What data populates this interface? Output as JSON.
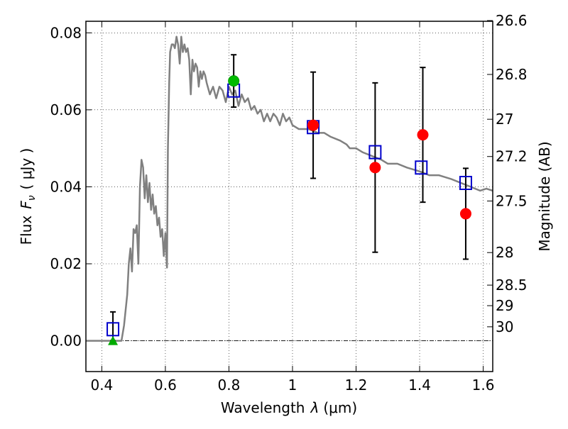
{
  "chart_data": {
    "type": "scatter",
    "xlabel_text": "Wavelength",
    "xlabel_symbol": "λ",
    "xlabel_unit": "(μm)",
    "ylabel_text": "Flux",
    "ylabel_symbol": "F",
    "ylabel_symbol_sub": "ν",
    "ylabel_unit": "( μJy )",
    "y2label": "Magnitude (AB)",
    "xlim": [
      0.35,
      1.63
    ],
    "ylim": [
      -0.008,
      0.083
    ],
    "x_ticks": [
      0.4,
      0.6,
      0.8,
      1.0,
      1.2,
      1.4,
      1.6
    ],
    "x_tick_labels": [
      "0.4",
      "0.6",
      "0.8",
      "1",
      "1.2",
      "1.4",
      "1.6"
    ],
    "y_ticks": [
      0.0,
      0.02,
      0.04,
      0.06,
      0.08
    ],
    "y_tick_labels": [
      "0.00",
      "0.02",
      "0.04",
      "0.06",
      "0.08"
    ],
    "y2_ticks": [
      {
        "label": "26.6",
        "value": 26.6
      },
      {
        "label": "26.8",
        "value": 26.8
      },
      {
        "label": "27",
        "value": 27.0
      },
      {
        "label": "27.2",
        "value": 27.2
      },
      {
        "label": "27.5",
        "value": 27.5
      },
      {
        "label": "28",
        "value": 28.0
      },
      {
        "label": "28.5",
        "value": 28.5
      },
      {
        "label": "29",
        "value": 29.0
      },
      {
        "label": "30",
        "value": 30.0
      }
    ],
    "grid": true,
    "colors": {
      "model": "#808080",
      "model_photometry": "#0000cc",
      "observed": "#ff0000",
      "observed_green": "#00bb00",
      "upper_limit": "#00aa00",
      "errorbar": "#000000"
    },
    "model_sed": {
      "x": [
        0.35,
        0.4,
        0.45,
        0.462,
        0.47,
        0.48,
        0.485,
        0.49,
        0.495,
        0.5,
        0.505,
        0.51,
        0.515,
        0.52,
        0.525,
        0.53,
        0.535,
        0.54,
        0.545,
        0.55,
        0.555,
        0.56,
        0.565,
        0.57,
        0.575,
        0.58,
        0.585,
        0.59,
        0.595,
        0.6,
        0.605,
        0.608,
        0.612,
        0.615,
        0.62,
        0.625,
        0.63,
        0.635,
        0.64,
        0.645,
        0.65,
        0.655,
        0.66,
        0.665,
        0.67,
        0.675,
        0.68,
        0.685,
        0.69,
        0.695,
        0.7,
        0.705,
        0.71,
        0.715,
        0.72,
        0.725,
        0.73,
        0.74,
        0.75,
        0.76,
        0.77,
        0.78,
        0.79,
        0.8,
        0.81,
        0.82,
        0.83,
        0.84,
        0.85,
        0.86,
        0.87,
        0.88,
        0.89,
        0.9,
        0.91,
        0.92,
        0.93,
        0.94,
        0.95,
        0.96,
        0.97,
        0.98,
        0.99,
        1.0,
        1.02,
        1.05,
        1.08,
        1.1,
        1.12,
        1.15,
        1.17,
        1.18,
        1.2,
        1.22,
        1.25,
        1.28,
        1.3,
        1.33,
        1.36,
        1.4,
        1.43,
        1.46,
        1.5,
        1.53,
        1.56,
        1.59,
        1.61,
        1.63
      ],
      "y": [
        0.0,
        0.0,
        0.0,
        0.0,
        0.004,
        0.012,
        0.02,
        0.024,
        0.018,
        0.029,
        0.028,
        0.03,
        0.02,
        0.04,
        0.047,
        0.045,
        0.037,
        0.043,
        0.036,
        0.041,
        0.034,
        0.038,
        0.033,
        0.035,
        0.03,
        0.032,
        0.027,
        0.029,
        0.022,
        0.028,
        0.019,
        0.05,
        0.067,
        0.075,
        0.077,
        0.077,
        0.076,
        0.079,
        0.077,
        0.072,
        0.079,
        0.075,
        0.077,
        0.075,
        0.076,
        0.073,
        0.064,
        0.073,
        0.07,
        0.072,
        0.071,
        0.066,
        0.07,
        0.068,
        0.07,
        0.069,
        0.067,
        0.064,
        0.066,
        0.063,
        0.066,
        0.065,
        0.062,
        0.066,
        0.064,
        0.065,
        0.061,
        0.064,
        0.062,
        0.063,
        0.06,
        0.061,
        0.059,
        0.06,
        0.057,
        0.059,
        0.057,
        0.059,
        0.058,
        0.056,
        0.059,
        0.057,
        0.058,
        0.056,
        0.055,
        0.055,
        0.054,
        0.054,
        0.053,
        0.052,
        0.051,
        0.05,
        0.05,
        0.049,
        0.048,
        0.047,
        0.046,
        0.046,
        0.045,
        0.044,
        0.043,
        0.043,
        0.042,
        0.041,
        0.04,
        0.039,
        0.0395,
        0.039
      ]
    },
    "model_photometry": {
      "x": [
        0.435,
        0.815,
        1.065,
        1.26,
        1.405,
        1.545
      ],
      "y": [
        0.003,
        0.065,
        0.0555,
        0.049,
        0.045,
        0.041
      ]
    },
    "observed": {
      "x": [
        1.065,
        1.26,
        1.41,
        1.545
      ],
      "y": [
        0.056,
        0.045,
        0.0535,
        0.033
      ],
      "yerr": [
        0.0138,
        0.022,
        0.0175,
        0.0118
      ]
    },
    "observed_green": {
      "x": [
        0.815
      ],
      "y": [
        0.0675
      ],
      "yerr": [
        0.0068
      ]
    },
    "upper_limit": {
      "x": [
        0.435
      ],
      "y": [
        0.0
      ],
      "yerr_up": 0.0075
    }
  }
}
